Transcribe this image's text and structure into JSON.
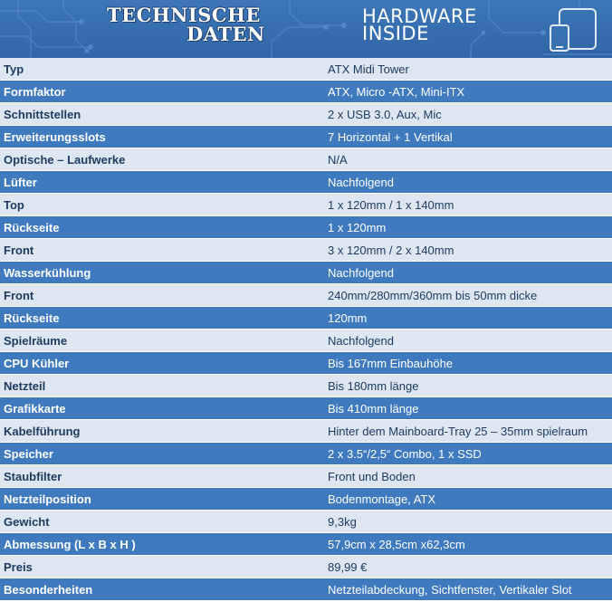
{
  "header": {
    "title_left_line1": "TECHNISCHE",
    "title_left_line2": "DATEN",
    "title_right_line1": "HARDWARE",
    "title_right_line2": "INSIDE",
    "accent_color": "#3d77b8"
  },
  "specs": [
    {
      "label": "Typ",
      "value": "ATX Midi Tower"
    },
    {
      "label": "Formfaktor",
      "value": "ATX, Micro -ATX, Mini-ITX"
    },
    {
      "label": "Schnittstellen",
      "value": "2 x USB 3.0, Aux, Mic"
    },
    {
      "label": "Erweiterungsslots",
      "value": "7 Horizontal + 1 Vertikal"
    },
    {
      "label": "Optische – Laufwerke",
      "value": "N/A"
    },
    {
      "label": "Lüfter",
      "value": "Nachfolgend"
    },
    {
      "label": "Top",
      "value": "1 x 120mm / 1 x 140mm"
    },
    {
      "label": "Rückseite",
      "value": "1 x 120mm"
    },
    {
      "label": "Front",
      "value": "3 x 120mm / 2 x 140mm"
    },
    {
      "label": "Wasserkühlung",
      "value": "Nachfolgend"
    },
    {
      "label": "Front",
      "value": "240mm/280mm/360mm bis 50mm dicke"
    },
    {
      "label": "Rückseite",
      "value": "120mm"
    },
    {
      "label": "Spielräume",
      "value": "Nachfolgend"
    },
    {
      "label": "CPU Kühler",
      "value": "Bis 167mm Einbauhöhe"
    },
    {
      "label": "Netzteil",
      "value": "Bis 180mm länge"
    },
    {
      "label": "Grafikkarte",
      "value": "Bis 410mm länge"
    },
    {
      "label": "Kabelführung",
      "value": "Hinter dem Mainboard-Tray 25 – 35mm spielraum"
    },
    {
      "label": "Speicher",
      "value": "2 x 3.5“/2,5“ Combo, 1 x SSD"
    },
    {
      "label": "Staubfilter",
      "value": "Front und Boden"
    },
    {
      "label": "Netzteilposition",
      "value": "Bodenmontage, ATX"
    },
    {
      "label": "Gewicht",
      "value": "9,3kg"
    },
    {
      "label": "Abmessung (L x B x H )",
      "value": "57,9cm x 28,5cm x62,3cm"
    },
    {
      "label": "Preis",
      "value": "89,99 €"
    },
    {
      "label": "Besonderheiten",
      "value": "Netzteilabdeckung, Sichtfenster, Vertikaler Slot"
    }
  ]
}
